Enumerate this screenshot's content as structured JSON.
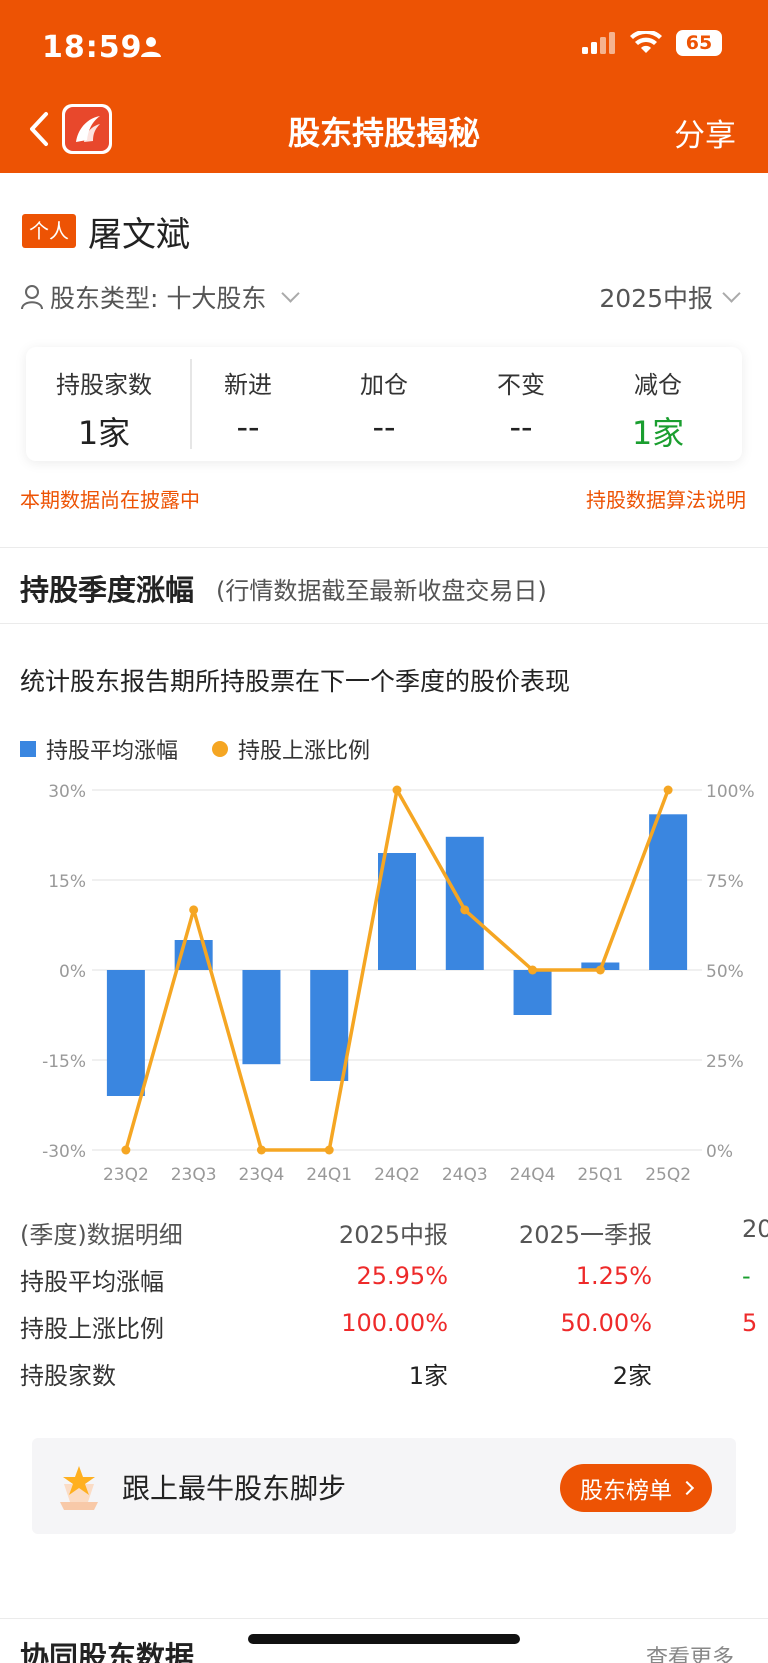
{
  "status_bar": {
    "time": "18:59",
    "battery": "65"
  },
  "nav": {
    "title": "股东持股揭秘",
    "share_label": "分享"
  },
  "holder": {
    "tag": "个人",
    "name": "屠文斌",
    "type_label": "股东类型: 十大股东",
    "report_period": "2025中报"
  },
  "stats": {
    "holding_count": {
      "label": "持股家数",
      "value": "1家"
    },
    "items": [
      {
        "label": "新进",
        "value": "--"
      },
      {
        "label": "加仓",
        "value": "--"
      },
      {
        "label": "不变",
        "value": "--"
      },
      {
        "label": "减仓",
        "value": "1家"
      }
    ]
  },
  "notes": {
    "left": "本期数据尚在披露中",
    "right": "持股数据算法说明"
  },
  "section": {
    "title": "持股季度涨幅",
    "subtitle": "(行情数据截至最新收盘交易日)",
    "description": "统计股东报告期所持股票在下一个季度的股价表现"
  },
  "legend": {
    "bar": "持股平均涨幅",
    "line": "持股上涨比例"
  },
  "colors": {
    "accent": "#ED5304",
    "bar": "#3A86E0",
    "line": "#F5A623",
    "up": "#EE2A2A",
    "down": "#1A9E2F"
  },
  "chart_data": {
    "type": "bar",
    "categories": [
      "23Q2",
      "23Q3",
      "23Q4",
      "24Q1",
      "24Q2",
      "24Q3",
      "24Q4",
      "25Q1",
      "25Q2"
    ],
    "series": [
      {
        "name": "持股平均涨幅",
        "type": "bar",
        "axis": "left",
        "values": [
          -21,
          5,
          -15.7,
          -18.5,
          19.5,
          22.2,
          -7.5,
          1.25,
          25.95
        ]
      },
      {
        "name": "持股上涨比例",
        "type": "line",
        "axis": "right",
        "values": [
          0,
          66.7,
          0,
          0,
          100,
          66.7,
          50,
          50,
          100
        ]
      }
    ],
    "y_left": {
      "ylim": [
        -30,
        30
      ],
      "ticks": [
        "30%",
        "15%",
        "0%",
        "-15%",
        "-30%"
      ]
    },
    "y_right": {
      "ylim": [
        0,
        100
      ],
      "ticks": [
        "100%",
        "75%",
        "50%",
        "25%",
        "0%"
      ]
    },
    "grid": true,
    "legend": "top-left"
  },
  "table": {
    "header": [
      "(季度)数据明细",
      "2025中报",
      "2025一季报",
      "20"
    ],
    "rows": [
      {
        "label": "持股平均涨幅",
        "v1": "25.95%",
        "v2": "1.25%",
        "v3": "-"
      },
      {
        "label": "持股上涨比例",
        "v1": "100.00%",
        "v2": "50.00%",
        "v3": "5"
      },
      {
        "label": "持股家数",
        "v1": "1家",
        "v2": "2家",
        "v3": ""
      }
    ]
  },
  "promo": {
    "text": "跟上最牛股东脚步",
    "button": "股东榜单"
  },
  "bottom": {
    "title": "协同股东数据",
    "more": "查看更多"
  }
}
